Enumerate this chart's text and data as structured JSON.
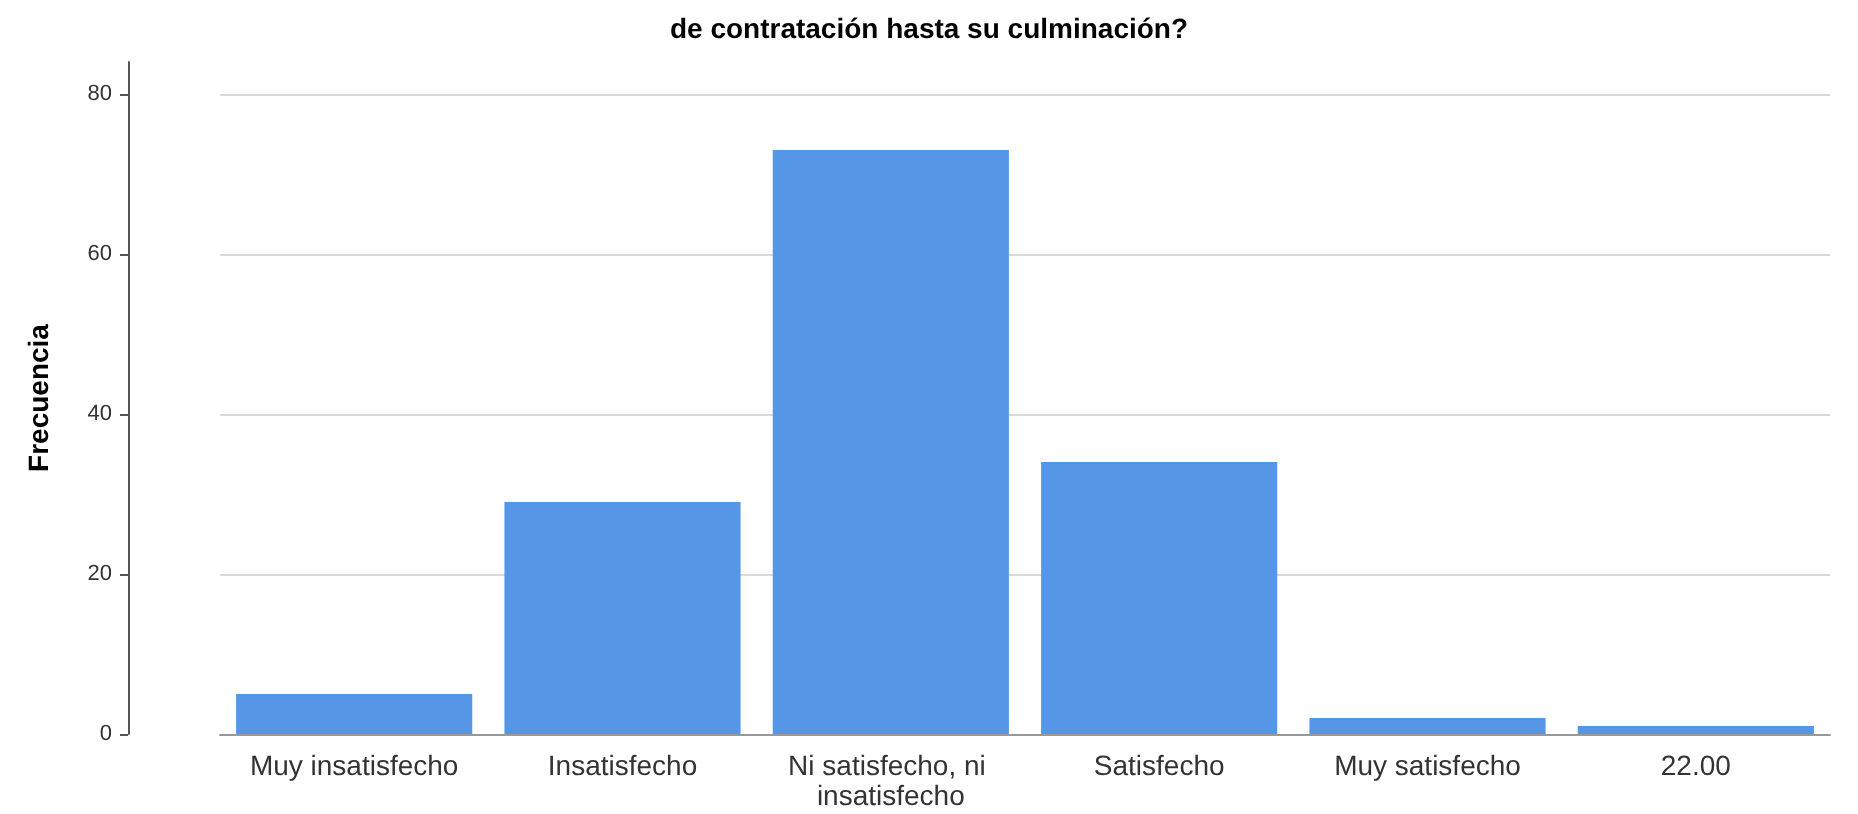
{
  "chart_data": {
    "type": "bar",
    "title": "de contratación hasta su culminación?",
    "ylabel": "Frecuencia",
    "categories": [
      "Muy insatisfecho",
      "Insatisfecho",
      "Ni satisfecho, ni insatisfecho",
      "Satisfecho",
      "Muy satisfecho",
      "22.00"
    ],
    "values": [
      5,
      29,
      73,
      34,
      2,
      1
    ],
    "color": "#5596e6",
    "ylim": [
      0,
      84
    ],
    "yticks": [
      0,
      20,
      40,
      60,
      80
    ],
    "grid": "y"
  }
}
